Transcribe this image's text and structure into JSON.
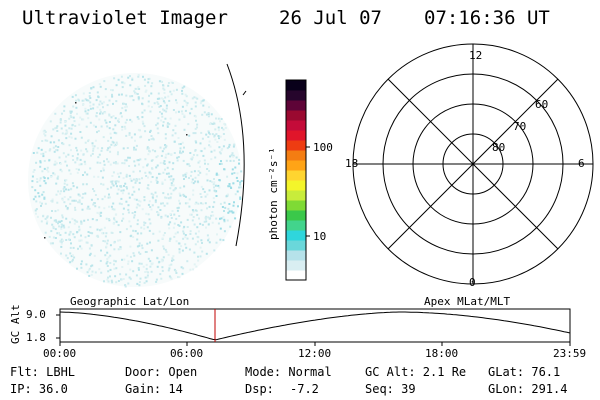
{
  "header": {
    "title": "Ultraviolet Imager",
    "date": "26 Jul 07",
    "time": "07:16:36 UT"
  },
  "colorbar": {
    "unit_text": "photon cm⁻²s⁻¹",
    "ticks": [
      "100",
      "10"
    ],
    "colors": [
      "#ffffff",
      "#d9eef2",
      "#b6e2ea",
      "#6ad7da",
      "#2fd6dc",
      "#42d48c",
      "#3ac84a",
      "#7fda35",
      "#c8ec3b",
      "#f4f52a",
      "#ffd530",
      "#ffa416",
      "#f47d12",
      "#ee3c12",
      "#e0152a",
      "#c40b39",
      "#9a0930",
      "#5e0437",
      "#26052c",
      "#09001a"
    ]
  },
  "polar_plot": {
    "labels": {
      "top": "12",
      "bottom": "0",
      "left": "18",
      "right": "6"
    },
    "rings": [
      "60",
      "70",
      "80"
    ]
  },
  "timeline": {
    "ylabel": "GC Alt",
    "left_title": "Geographic Lat/Lon",
    "right_title": "Apex MLat/MLT",
    "yticks": [
      "9.0",
      "1.8"
    ],
    "xticks": [
      "00:00",
      "06:00",
      "12:00",
      "18:00",
      "23:59"
    ],
    "marker_color": "#c00000"
  },
  "info": {
    "filter": "Flt: LBHL",
    "ip": "IP: 36.0",
    "door": "Door: Open",
    "gain": "Gain: 14",
    "mode": "Mode: Normal",
    "dsp_label": "Dsp:",
    "dsp_value": "-7.2",
    "gcalt": "GC Alt: 2.1 Re",
    "seq": "Seq: 39",
    "glat": "GLat:  76.1",
    "glon": "GLon: 291.4"
  }
}
